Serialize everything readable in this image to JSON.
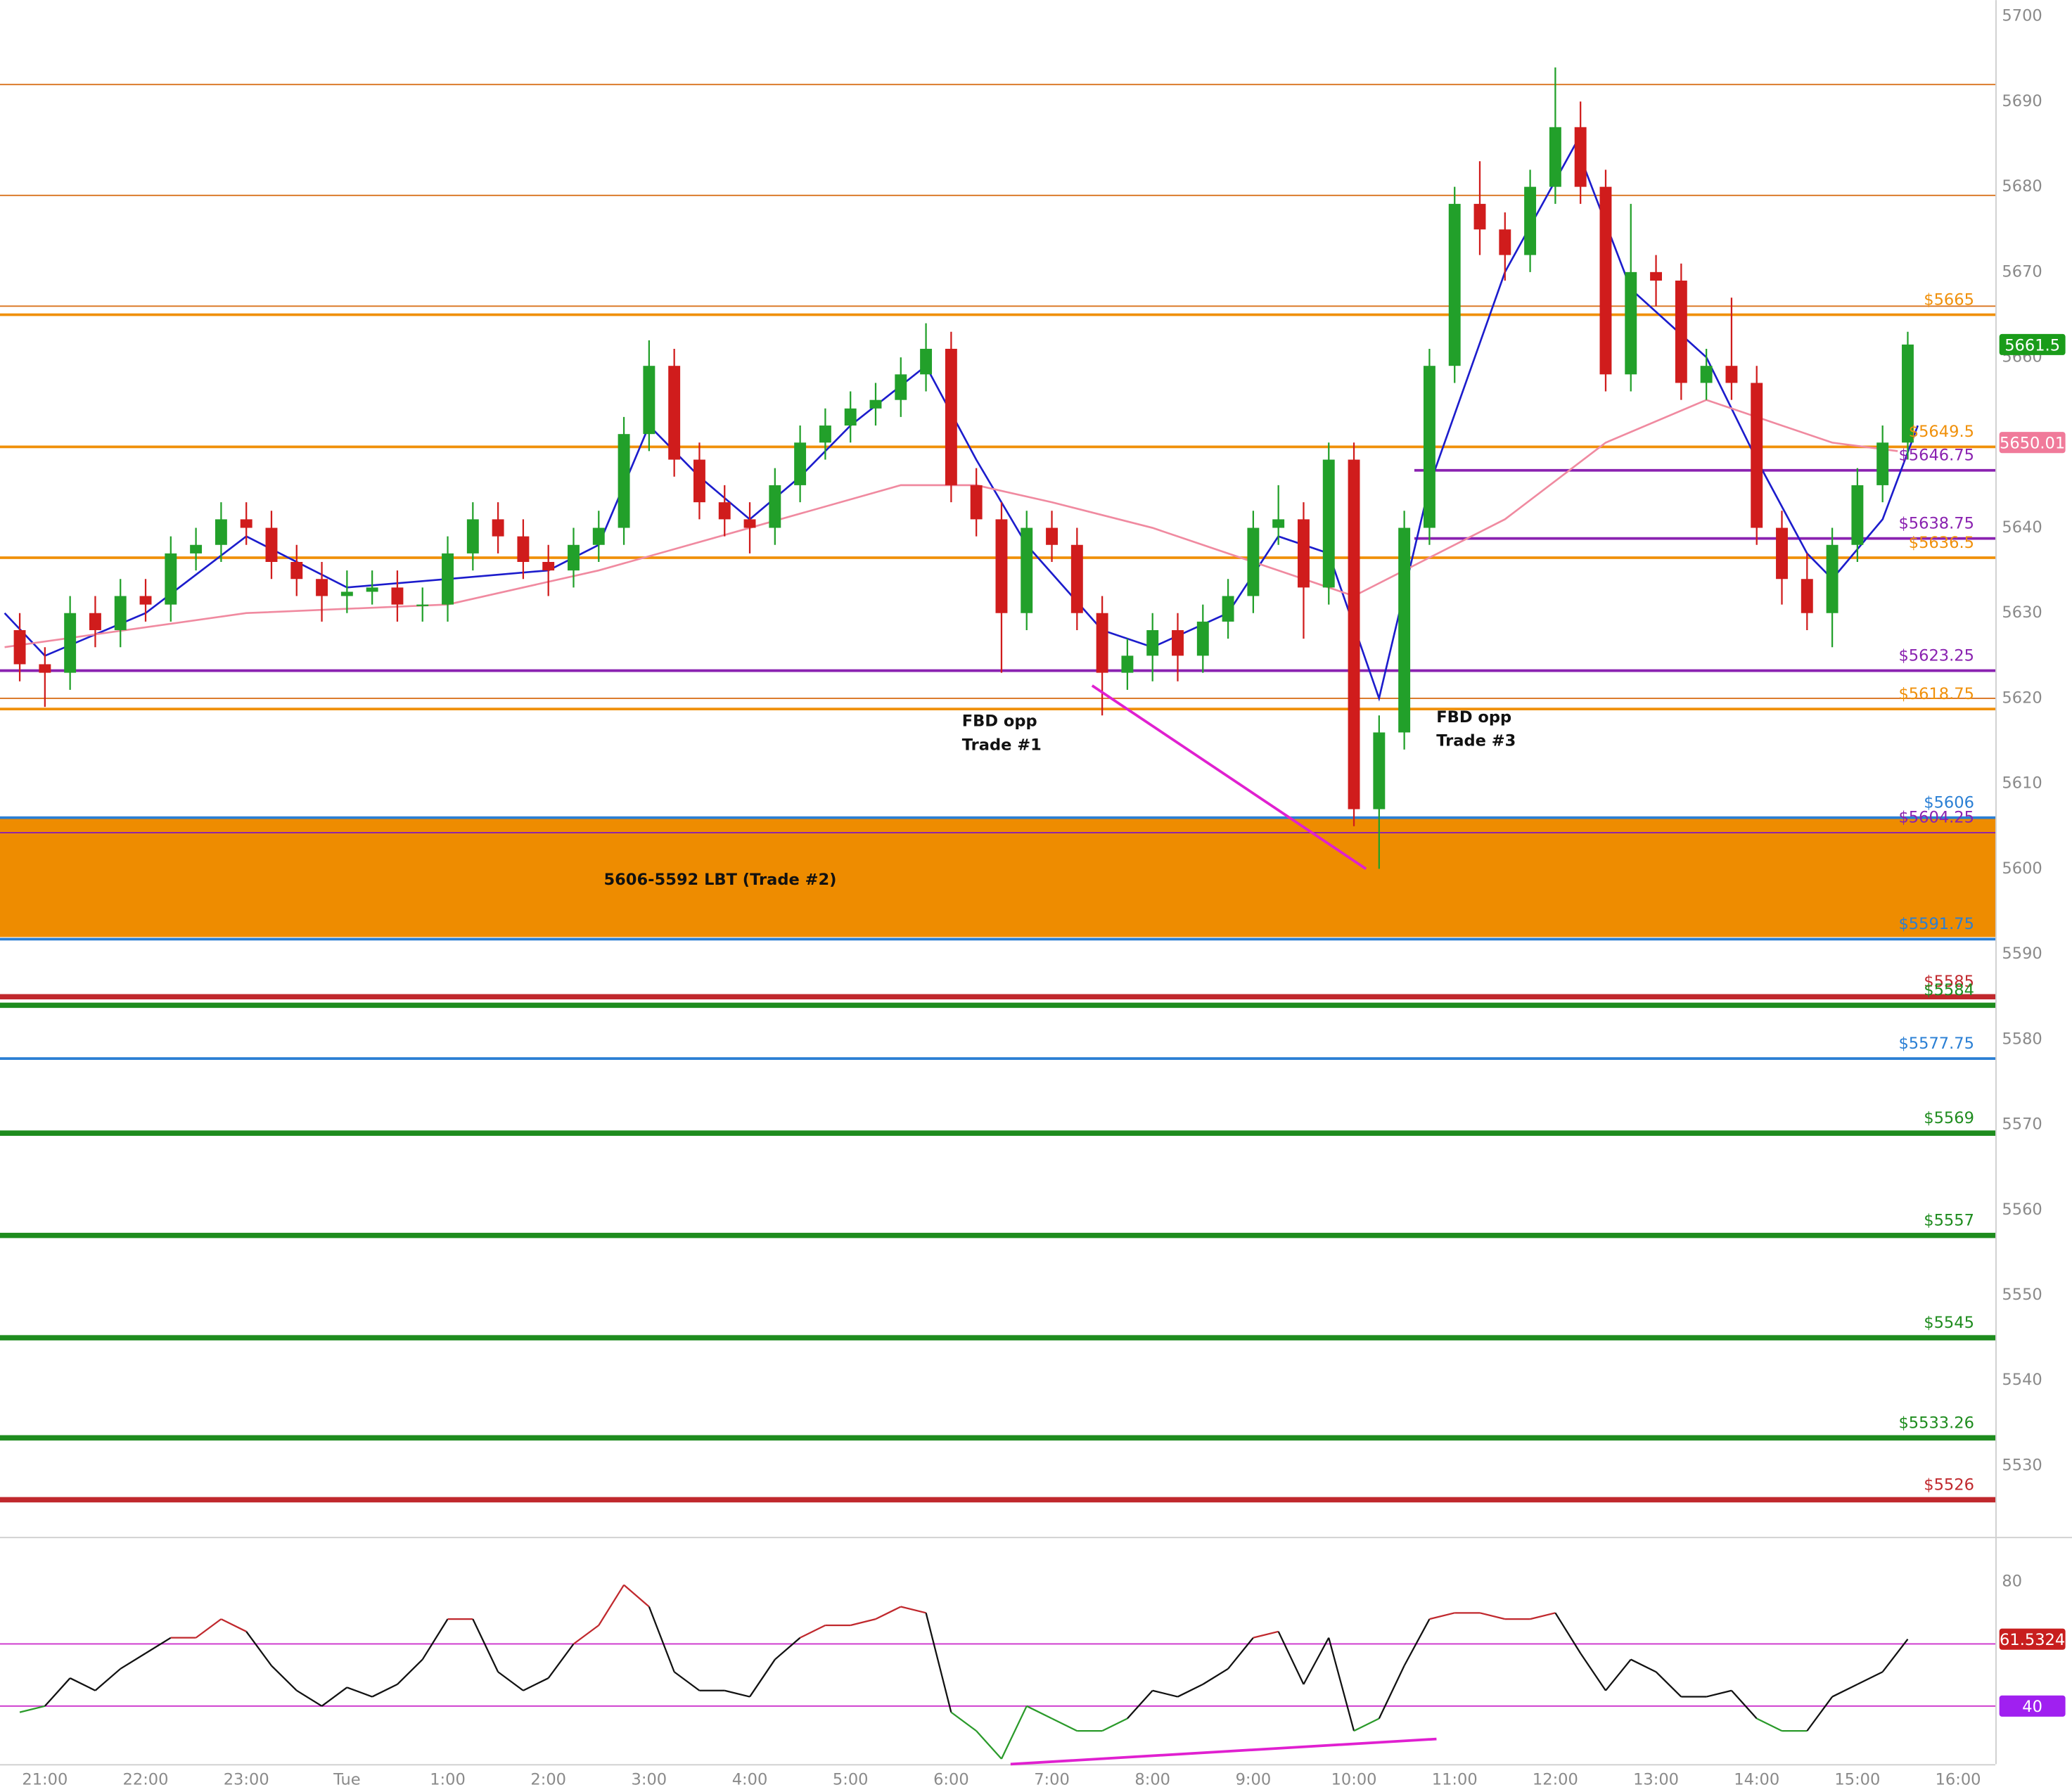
{
  "chart_data": [
    {
      "type": "candlestick",
      "x": [
        -0.25,
        0,
        0.25,
        0.5,
        0.75,
        1,
        1.25,
        1.5,
        1.75,
        2,
        2.25,
        2.5,
        2.75,
        3,
        3.25,
        3.5,
        3.75,
        4,
        4.25,
        4.5,
        4.75,
        5,
        5.25,
        5.5,
        5.75,
        6,
        6.25,
        6.5,
        6.75,
        7,
        7.25,
        7.5,
        7.75,
        8,
        8.25,
        8.5,
        8.75,
        9,
        9.25,
        9.5,
        9.75,
        10,
        10.25,
        10.5,
        10.75,
        11,
        11.25,
        11.5,
        11.75,
        12,
        12.25,
        12.5,
        12.75,
        13,
        13.25,
        13.5,
        13.75,
        14,
        14.25,
        14.5,
        14.75,
        15,
        15.25,
        15.5,
        15.75,
        16,
        16.25,
        16.5,
        16.75,
        17,
        17.25,
        17.5,
        17.75,
        18,
        18.25,
        18.5
      ],
      "open": [
        5628,
        5624,
        5623,
        5630,
        5628,
        5632,
        5631,
        5637,
        5638,
        5641,
        5640,
        5636,
        5634,
        5632,
        5632.5,
        5633,
        5631,
        5631,
        5637,
        5641,
        5639,
        5636,
        5635,
        5638,
        5640,
        5651,
        5659,
        5648,
        5643,
        5641,
        5640,
        5645,
        5650,
        5652,
        5654,
        5655,
        5658,
        5661,
        5645,
        5641,
        5630,
        5640,
        5638,
        5630,
        5623,
        5625,
        5628,
        5625,
        5629,
        5632,
        5640,
        5641,
        5633,
        5648,
        5607,
        5616,
        5640,
        5659,
        5678,
        5675,
        5672,
        5680,
        5687,
        5680,
        5658,
        5670,
        5669,
        5657,
        5659,
        5657,
        5640,
        5634,
        5630,
        5638,
        5645,
        5650
      ],
      "high": [
        5630,
        5626,
        5632,
        5632,
        5634,
        5634,
        5639,
        5640,
        5643,
        5643,
        5642,
        5638,
        5636,
        5635,
        5635,
        5635,
        5633,
        5639,
        5643,
        5643,
        5641,
        5638,
        5640,
        5642,
        5653,
        5662,
        5661,
        5650,
        5645,
        5643,
        5647,
        5652,
        5654,
        5656,
        5657,
        5660,
        5664,
        5663,
        5647,
        5643,
        5642,
        5642,
        5640,
        5632,
        5627,
        5630,
        5630,
        5631,
        5634,
        5642,
        5645,
        5643,
        5650,
        5650,
        5618,
        5642,
        5661,
        5680,
        5683,
        5677,
        5682,
        5694,
        5690,
        5682,
        5678,
        5672,
        5671,
        5661,
        5667,
        5659,
        5642,
        5637,
        5640,
        5647,
        5652,
        5663
      ],
      "low": [
        5622,
        5619,
        5621,
        5626,
        5626,
        5629,
        5629,
        5635,
        5636,
        5638,
        5634,
        5632,
        5629,
        5630,
        5631,
        5629,
        5629,
        5629,
        5635,
        5637,
        5634,
        5632,
        5633,
        5636,
        5638,
        5649,
        5646,
        5641,
        5639,
        5637,
        5638,
        5643,
        5648,
        5650,
        5652,
        5653,
        5656,
        5643,
        5639,
        5623,
        5628,
        5636,
        5628,
        5618,
        5621,
        5622,
        5622,
        5623,
        5627,
        5630,
        5638,
        5627,
        5631,
        5605,
        5600,
        5614,
        5638,
        5657,
        5672,
        5669,
        5670,
        5678,
        5678,
        5656,
        5656,
        5666,
        5655,
        5655,
        5655,
        5638,
        5631,
        5628,
        5626,
        5636,
        5643,
        5648
      ],
      "close": [
        5624,
        5623,
        5630,
        5628,
        5632,
        5631,
        5637,
        5638,
        5641,
        5640,
        5636,
        5634,
        5632,
        5632.5,
        5633,
        5631,
        5631,
        5637,
        5641,
        5639,
        5636,
        5635,
        5638,
        5640,
        5651,
        5659,
        5648,
        5643,
        5641,
        5640,
        5645,
        5650,
        5652,
        5654,
        5655,
        5658,
        5661,
        5645,
        5641,
        5630,
        5640,
        5638,
        5630,
        5623,
        5625,
        5628,
        5625,
        5629,
        5632,
        5640,
        5641,
        5633,
        5648,
        5607,
        5616,
        5640,
        5659,
        5678,
        5675,
        5672,
        5680,
        5687,
        5680,
        5658,
        5670,
        5669,
        5657,
        5659,
        5657,
        5640,
        5634,
        5630,
        5638,
        5645,
        5650,
        5661.5
      ],
      "up_color": "#22a02a",
      "down_color": "#d01c1c",
      "lines": [
        {
          "color": "#1c1ccc",
          "x": [
            -0.4,
            0,
            1,
            2,
            3,
            4,
            5,
            5.5,
            6,
            6.5,
            7,
            7.5,
            8,
            8.75,
            9.25,
            9.75,
            10.5,
            11,
            11.75,
            12.25,
            12.75,
            13.25,
            13.75,
            14.5,
            15.2,
            15.75,
            16.5,
            17,
            17.5,
            17.75,
            18.25,
            18.6
          ],
          "values": [
            5630,
            5625,
            5630,
            5639,
            5633,
            5634,
            5635,
            5638,
            5652,
            5646,
            5641,
            5646,
            5652,
            5659,
            5648,
            5638,
            5628,
            5626,
            5630,
            5639,
            5637,
            5620,
            5645,
            5670,
            5685,
            5668,
            5660,
            5648,
            5637,
            5634,
            5641,
            5652
          ]
        },
        {
          "color": "#f08aa0",
          "x": [
            -0.4,
            2,
            4,
            5.5,
            7,
            8.5,
            9.25,
            10,
            11,
            12,
            13,
            13.5,
            14.5,
            15.5,
            16.5,
            17,
            17.75,
            18.4
          ],
          "values": [
            5626,
            5630,
            5631,
            5635,
            5640,
            5645,
            5645,
            5643,
            5640,
            5636,
            5632,
            5635,
            5641,
            5650,
            5655,
            5653,
            5650,
            5649
          ]
        }
      ],
      "levels": [
        {
          "value": 5692,
          "color": "#d9731f",
          "width": 1
        },
        {
          "value": 5679,
          "color": "#d9731f",
          "width": 1
        },
        {
          "value": 5666,
          "color": "#d9731f",
          "width": 1
        },
        {
          "value": 5665,
          "label": "$5665",
          "color": "#f0900a",
          "width": 2
        },
        {
          "value": 5649.5,
          "label": "$5649.5",
          "color": "#f0900a",
          "width": 2
        },
        {
          "value": 5646.75,
          "label": "$5646.75",
          "color": "#8a22b0",
          "width": 2,
          "x_start": 13.6
        },
        {
          "value": 5638.75,
          "label": "$5638.75",
          "color": "#8a22b0",
          "width": 2,
          "x_start": 13.6
        },
        {
          "value": 5636.5,
          "label": "$5636.5",
          "color": "#f0900a",
          "width": 2
        },
        {
          "value": 5623.25,
          "label": "$5623.25",
          "color": "#8a22b0",
          "width": 2
        },
        {
          "value": 5620,
          "color": "#d9731f",
          "width": 1
        },
        {
          "value": 5618.75,
          "label": "$5618.75",
          "color": "#f0900a",
          "width": 2
        },
        {
          "value": 5606,
          "label": "$5606",
          "color": "#2a7fd4",
          "width": 2
        },
        {
          "value": 5604.25,
          "label": "$5604.25",
          "color": "#8a22b0",
          "width": 1
        },
        {
          "value": 5591.75,
          "label": "$5591.75",
          "color": "#2a7fd4",
          "width": 2
        },
        {
          "value": 5585,
          "label": "$5585",
          "color": "#c0282d",
          "width": 4
        },
        {
          "value": 5584,
          "label": "$5584",
          "color": "#1e8c1e",
          "width": 4
        },
        {
          "value": 5577.75,
          "label": "$5577.75",
          "color": "#2a7fd4",
          "width": 2
        },
        {
          "value": 5569,
          "label": "$5569",
          "color": "#1e8c1e",
          "width": 4
        },
        {
          "value": 5557,
          "label": "$5557",
          "color": "#1e8c1e",
          "width": 4
        },
        {
          "value": 5545,
          "label": "$5545",
          "color": "#1e8c1e",
          "width": 4
        },
        {
          "value": 5533.26,
          "label": "$5533.26",
          "color": "#1e8c1e",
          "width": 4
        },
        {
          "value": 5526,
          "label": "$5526",
          "color": "#c0282d",
          "width": 4
        }
      ],
      "zone": {
        "from": 5592,
        "to": 5606,
        "color": "#ee8c00",
        "label": "5606-5592 LBT (Trade #2)"
      },
      "trendline": {
        "x": [
          10.4,
          13.12
        ],
        "values": [
          5621.5,
          5600
        ],
        "color": "#e020d0"
      },
      "annotations": [
        [
          "FBD opp",
          "Trade #1"
        ],
        [
          "FBD opp",
          "Trade #3"
        ]
      ],
      "badges": [
        {
          "value": 5661.5,
          "color": "#1a9c1a"
        },
        {
          "value": 5650.01,
          "color": "#f07a9a"
        }
      ],
      "xlim": [
        -0.446,
        19.37
      ],
      "ylim": [
        5521.8,
        5701.9
      ],
      "yticks": [
        5530,
        5540,
        5550,
        5560,
        5570,
        5580,
        5590,
        5600,
        5610,
        5620,
        5630,
        5640,
        5650,
        5660,
        5670,
        5680,
        5690,
        5700
      ]
    },
    {
      "type": "line",
      "x": [
        -0.25,
        0,
        0.25,
        0.5,
        0.75,
        1,
        1.25,
        1.5,
        1.75,
        2,
        2.25,
        2.5,
        2.75,
        3,
        3.25,
        3.5,
        3.75,
        4,
        4.25,
        4.5,
        4.75,
        5,
        5.25,
        5.5,
        5.75,
        6,
        6.25,
        6.5,
        6.75,
        7,
        7.25,
        7.5,
        7.75,
        8,
        8.25,
        8.5,
        8.75,
        9,
        9.25,
        9.5,
        9.75,
        10,
        10.25,
        10.5,
        10.75,
        11,
        11.25,
        11.5,
        11.75,
        12,
        12.25,
        12.5,
        12.75,
        13,
        13.25,
        13.5,
        13.75,
        14,
        14.25,
        14.5,
        14.75,
        15,
        15.25,
        15.5,
        15.75,
        16,
        16.25,
        16.5,
        16.75,
        17,
        17.25,
        17.5,
        17.75,
        18,
        18.25,
        18.5
      ],
      "values": [
        38,
        40,
        49,
        45,
        52,
        57,
        62,
        62,
        68,
        64,
        53,
        45,
        40,
        46,
        43,
        47,
        55,
        68,
        68,
        51,
        45,
        49,
        60,
        66,
        79,
        72,
        51,
        45,
        45,
        43,
        55,
        62,
        66,
        66,
        68,
        72,
        70,
        38,
        32,
        23,
        40,
        36,
        32,
        32,
        36,
        45,
        43,
        47,
        52,
        62,
        64,
        47,
        62,
        32,
        36,
        53,
        68,
        70,
        70,
        68,
        68,
        70,
        57,
        45,
        55,
        51,
        43,
        43,
        45,
        36,
        32,
        32,
        43,
        47,
        51,
        61.5324
      ],
      "colors": {
        "above": "#c0282d",
        "below": "#2a9a2a",
        "neutral": "#111111"
      },
      "levels": [
        {
          "value": 60,
          "color": "#cc33cc"
        },
        {
          "value": 40,
          "color": "#cc33cc",
          "badge": "#a020f0"
        }
      ],
      "trendline": {
        "x": [
          9.59,
          13.82
        ],
        "values": [
          21.3,
          29.4
        ],
        "color": "#e020d0"
      },
      "badge": {
        "color": "#c81e1e"
      },
      "xlim": [
        -0.446,
        19.37
      ],
      "ylim": [
        21.3,
        93.2
      ],
      "yticks": [
        40,
        60,
        80
      ],
      "xticks": [
        {
          "value": 0,
          "label": "21:00"
        },
        {
          "value": 1,
          "label": "22:00"
        },
        {
          "value": 2,
          "label": "23:00"
        },
        {
          "value": 3,
          "label": "Tue"
        },
        {
          "value": 4,
          "label": "1:00"
        },
        {
          "value": 5,
          "label": "2:00"
        },
        {
          "value": 6,
          "label": "3:00"
        },
        {
          "value": 7,
          "label": "4:00"
        },
        {
          "value": 8,
          "label": "5:00"
        },
        {
          "value": 9,
          "label": "6:00"
        },
        {
          "value": 10,
          "label": "7:00"
        },
        {
          "value": 11,
          "label": "8:00"
        },
        {
          "value": 12,
          "label": "9:00"
        },
        {
          "value": 13,
          "label": "10:00"
        },
        {
          "value": 14,
          "label": "11:00"
        },
        {
          "value": 15,
          "label": "12:00"
        },
        {
          "value": 16,
          "label": "13:00"
        },
        {
          "value": 17,
          "label": "14:00"
        },
        {
          "value": 18,
          "label": "15:00"
        },
        {
          "value": 19,
          "label": "16:00"
        }
      ]
    }
  ]
}
